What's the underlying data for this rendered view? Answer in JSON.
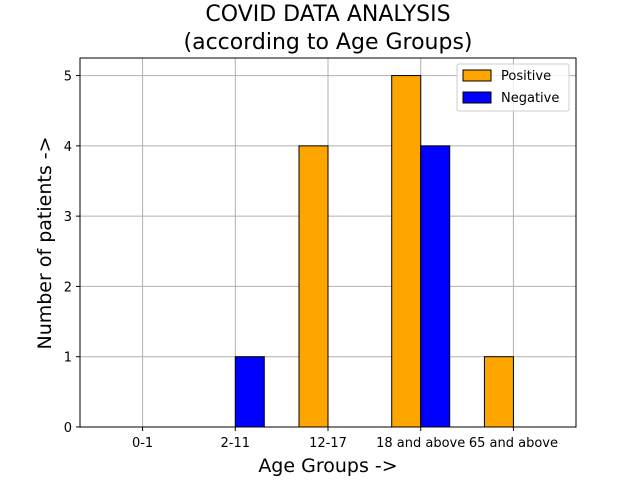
{
  "chart_data": {
    "type": "bar",
    "title": "COVID DATA ANALYSIS",
    "subtitle": "(according to Age Groups)",
    "xlabel": "Age Groups ->",
    "ylabel": "Number of patients ->",
    "categories": [
      "0-1",
      "2-11",
      "12-17",
      "18 and above",
      "65 and above"
    ],
    "series": [
      {
        "name": "Positive",
        "values": [
          0,
          0,
          4,
          5,
          1
        ],
        "color": "#ffa500"
      },
      {
        "name": "Negative",
        "values": [
          0,
          1,
          0,
          4,
          0
        ],
        "color": "#0000ff"
      }
    ],
    "ylim": [
      0,
      5.25
    ],
    "yticks": [
      "0",
      "1",
      "2",
      "3",
      "4",
      "5"
    ],
    "grid": true,
    "legend_position": "top-right"
  }
}
